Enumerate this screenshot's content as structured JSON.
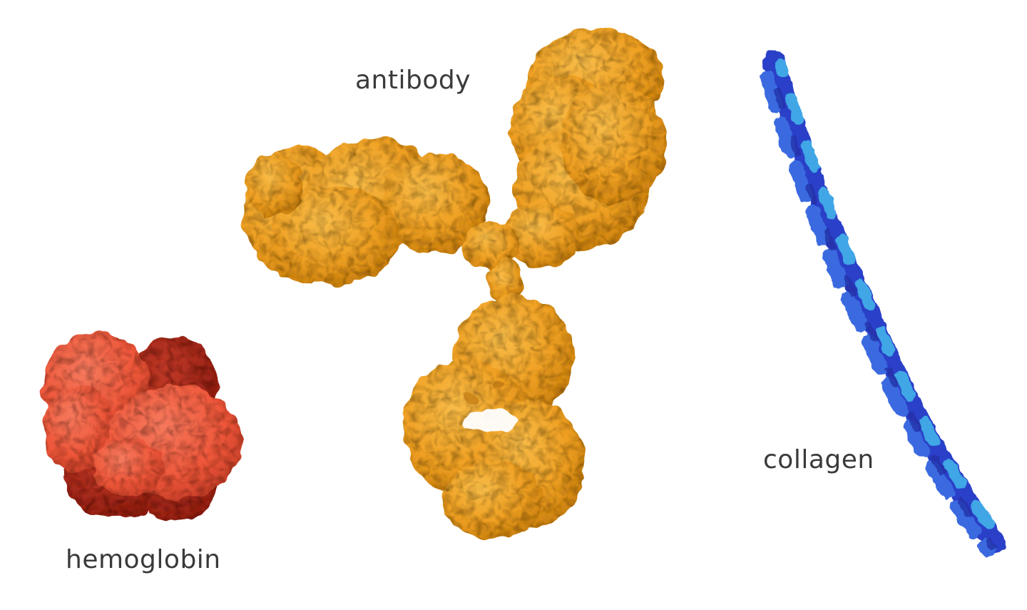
{
  "labels": {
    "antibody": "antibody",
    "collagen": "collagen",
    "hemoglobin": "hemoglobin"
  },
  "colors": {
    "antibody": "#F0A126",
    "antibody_shadow": "#C97F0E",
    "antibody_highlight": "#F8BC48",
    "hemoglobin_light": "#F0583C",
    "hemoglobin_dark": "#A8261A",
    "collagen_dark": "#2A3FC8",
    "collagen_mid": "#3B6AE0",
    "collagen_light": "#3FA6E6",
    "label_text": "#3a3a3a",
    "background": "#ffffff"
  },
  "icons": {
    "antibody": "antibody-molecule-icon",
    "hemoglobin": "hemoglobin-molecule-icon",
    "collagen": "collagen-helix-icon"
  }
}
